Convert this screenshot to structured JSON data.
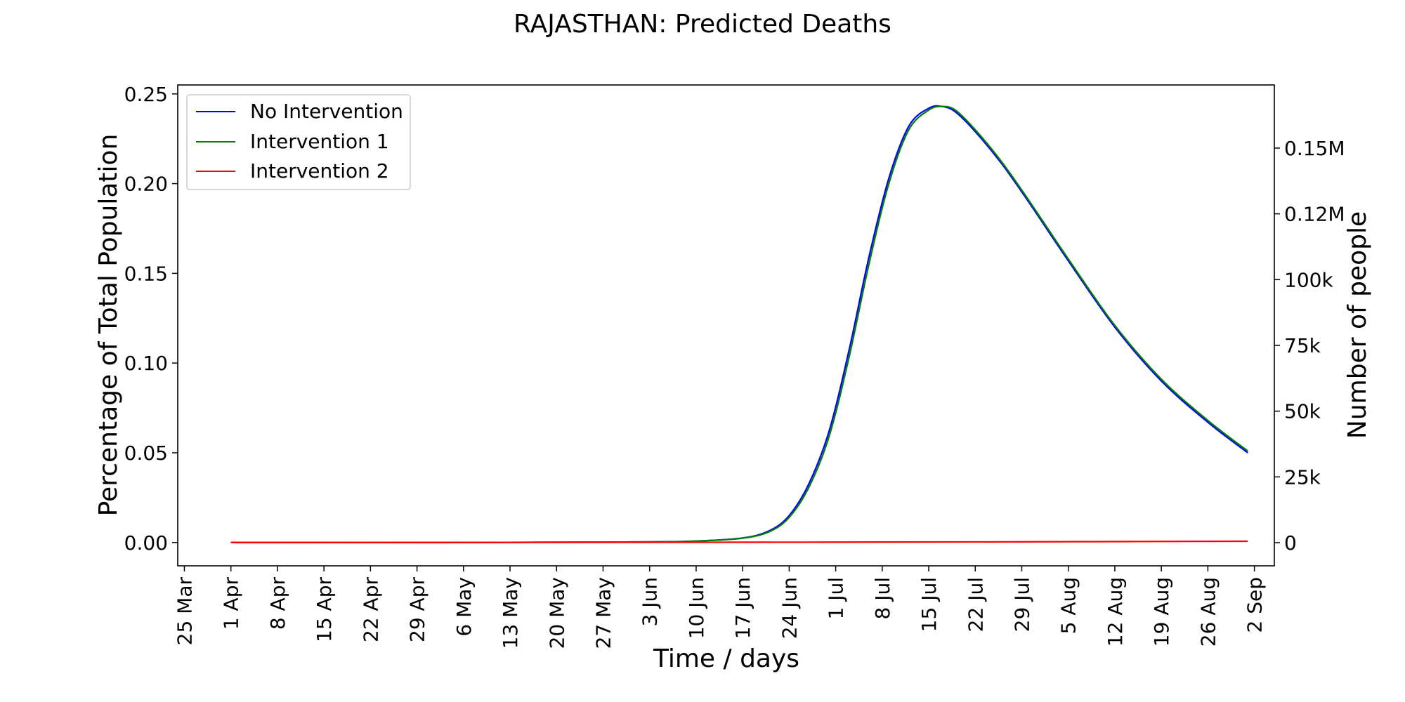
{
  "chart_data": {
    "type": "line",
    "title": "RAJASTHAN: Predicted Deaths",
    "xlabel": "Time / days",
    "ylabel": "Percentage of Total Population",
    "y2label": "Number of people",
    "x_start": "2020-03-25",
    "x_end": "2020-09-01",
    "xlim": [
      "2020-03-24",
      "2020-09-05"
    ],
    "ylim": [
      -0.013,
      0.255
    ],
    "x_ticks": [
      "25 Mar",
      "1 Apr",
      "8 Apr",
      "15 Apr",
      "22 Apr",
      "29 Apr",
      "6 May",
      "13 May",
      "20 May",
      "27 May",
      "3 Jun",
      "10 Jun",
      "17 Jun",
      "24 Jun",
      "1 Jul",
      "8 Jul",
      "15 Jul",
      "22 Jul",
      "29 Jul",
      "5 Aug",
      "12 Aug",
      "19 Aug",
      "26 Aug",
      "2 Sep"
    ],
    "y_ticks": [
      "0.00",
      "0.05",
      "0.10",
      "0.15",
      "0.20",
      "0.25"
    ],
    "y_tick_values": [
      0,
      0.05,
      0.1,
      0.15,
      0.2,
      0.25
    ],
    "y2_ticks": [
      "0",
      "25k",
      "50k",
      "75k",
      "100k",
      "0.12M",
      "0.15M"
    ],
    "y2_tick_values": [
      0,
      25000,
      50000,
      75000,
      100000,
      125000,
      150000
    ],
    "y2lim": [
      -8800,
      174000
    ],
    "legend_position": "top-left",
    "grid": false,
    "series": [
      {
        "name": "No Intervention",
        "color": "#0000ff",
        "x": [
          "2020-04-01",
          "2020-05-01",
          "2020-06-01",
          "2020-06-10",
          "2020-06-17",
          "2020-06-21",
          "2020-06-24",
          "2020-06-27",
          "2020-06-30",
          "2020-07-03",
          "2020-07-06",
          "2020-07-09",
          "2020-07-12",
          "2020-07-15",
          "2020-07-17",
          "2020-07-19",
          "2020-07-22",
          "2020-07-26",
          "2020-07-30",
          "2020-08-05",
          "2020-08-12",
          "2020-08-19",
          "2020-08-26",
          "2020-09-01"
        ],
        "y": [
          0.0,
          0.0,
          0.0003,
          0.0008,
          0.0025,
          0.0065,
          0.015,
          0.033,
          0.062,
          0.107,
          0.159,
          0.203,
          0.232,
          0.242,
          0.243,
          0.24,
          0.229,
          0.211,
          0.19,
          0.157,
          0.12,
          0.09,
          0.067,
          0.05
        ]
      },
      {
        "name": "Intervention 1",
        "color": "#008000",
        "x": [
          "2020-04-01",
          "2020-05-01",
          "2020-06-01",
          "2020-06-10",
          "2020-06-17",
          "2020-06-21",
          "2020-06-24",
          "2020-06-27",
          "2020-06-30",
          "2020-07-03",
          "2020-07-06",
          "2020-07-09",
          "2020-07-12",
          "2020-07-15",
          "2020-07-17",
          "2020-07-19",
          "2020-07-22",
          "2020-07-26",
          "2020-07-30",
          "2020-08-05",
          "2020-08-12",
          "2020-08-19",
          "2020-08-26",
          "2020-09-01"
        ],
        "y": [
          0.0,
          0.0,
          0.0003,
          0.0008,
          0.0024,
          0.006,
          0.014,
          0.031,
          0.059,
          0.103,
          0.155,
          0.2,
          0.23,
          0.241,
          0.243,
          0.241,
          0.23,
          0.212,
          0.191,
          0.158,
          0.121,
          0.091,
          0.068,
          0.051
        ]
      },
      {
        "name": "Intervention 2",
        "color": "#ff0000",
        "x": [
          "2020-04-01",
          "2020-05-01",
          "2020-06-01",
          "2020-07-01",
          "2020-08-01",
          "2020-09-01"
        ],
        "y": [
          0.0,
          0.0,
          0.0001,
          0.0002,
          0.0004,
          0.0007
        ]
      }
    ]
  }
}
